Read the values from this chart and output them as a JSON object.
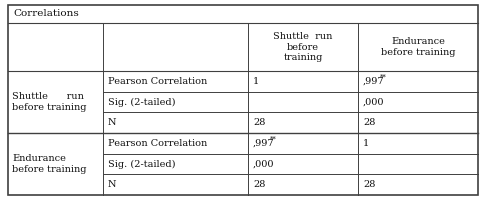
{
  "title": "Correlations",
  "header_col2": "Shuttle  run\nbefore\ntraining",
  "header_col3": "Endurance\nbefore training",
  "group1_label": "Shuttle      run\nbefore training",
  "group2_label": "Endurance\nbefore training",
  "row_groups": [
    {
      "rows": [
        {
          "label": "Pearson Correlation",
          "c1": "1",
          "c2": ",997",
          "c2_sup": "**"
        },
        {
          "label": "Sig. (2-tailed)",
          "c1": "",
          "c2": ",000",
          "c2_sup": ""
        },
        {
          "label": "N",
          "c1": "28",
          "c2": "28",
          "c2_sup": ""
        }
      ]
    },
    {
      "rows": [
        {
          "label": "Pearson Correlation",
          "c1": ",997",
          "c1_sup": "**",
          "c2": "1",
          "c2_sup": ""
        },
        {
          "label": "Sig. (2-tailed)",
          "c1": ",000",
          "c1_sup": "",
          "c2": "",
          "c2_sup": ""
        },
        {
          "label": "N",
          "c1": "28",
          "c1_sup": "",
          "c2": "28",
          "c2_sup": ""
        }
      ]
    }
  ],
  "background": "#ffffff",
  "border_color": "#404040",
  "font_size": 7.0
}
